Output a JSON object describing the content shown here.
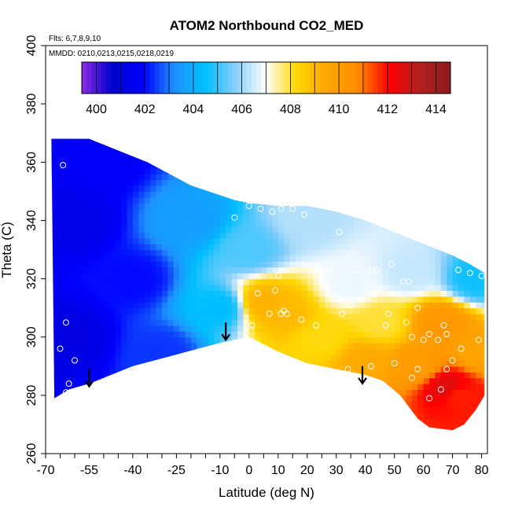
{
  "chart_data": {
    "type": "heatmap",
    "title": "ATOM2 Northbound CO2_MED",
    "annotations": [
      "Flts: 6,7,8,9,10",
      "MMDD: 0210,0213,0215,0218,0219"
    ],
    "xlabel": "Latitude (deg N)",
    "ylabel": "Theta (C)",
    "xlim": [
      -70,
      82
    ],
    "ylim": [
      260,
      400
    ],
    "x_ticks": [
      "-70",
      "-55",
      "-40",
      "-25",
      "-10",
      "0",
      "10",
      "20",
      "30",
      "40",
      "50",
      "60",
      "70",
      "80"
    ],
    "y_ticks": [
      "260",
      "280",
      "300",
      "320",
      "340",
      "360",
      "380",
      "400"
    ],
    "colorbar": {
      "ticks": [
        "400",
        "402",
        "404",
        "406",
        "408",
        "410",
        "412",
        "414"
      ],
      "range": [
        399.4,
        414.6
      ],
      "colors": [
        "#8b2be2",
        "#0000cd",
        "#0000ff",
        "#1e90ff",
        "#00bfff",
        "#87cefa",
        "#ffffff",
        "#ffd700",
        "#ffa500",
        "#ff8c00",
        "#ff0000",
        "#b22222",
        "#8b1a1a"
      ]
    },
    "field": {
      "description": "CO2 median (ppm) interpolated on latitude/theta grid",
      "ridge_top": [
        [
          -68,
          368
        ],
        [
          -55,
          368
        ],
        [
          -45,
          364
        ],
        [
          -35,
          360
        ],
        [
          -20,
          352
        ],
        [
          -5,
          347
        ],
        [
          0,
          346
        ],
        [
          10,
          345
        ],
        [
          20,
          345
        ],
        [
          30,
          343
        ],
        [
          40,
          340
        ],
        [
          50,
          336
        ],
        [
          60,
          332
        ],
        [
          70,
          328
        ],
        [
          76,
          325
        ],
        [
          81,
          322
        ]
      ],
      "bottom_edge": [
        [
          -67,
          279
        ],
        [
          -62,
          282
        ],
        [
          -55,
          284
        ],
        [
          -40,
          290
        ],
        [
          -25,
          294
        ],
        [
          -10,
          298
        ],
        [
          0,
          300
        ],
        [
          10,
          295
        ],
        [
          20,
          291
        ],
        [
          30,
          289
        ],
        [
          40,
          287
        ],
        [
          46,
          285
        ],
        [
          52,
          280
        ],
        [
          58,
          272
        ],
        [
          62,
          269
        ],
        [
          70,
          268
        ],
        [
          74,
          270
        ],
        [
          78,
          275
        ],
        [
          81,
          280
        ]
      ],
      "anchors": [
        {
          "lat": -62,
          "theta": 300,
          "co2": 401.2
        },
        {
          "lat": -60,
          "theta": 340,
          "co2": 401.4
        },
        {
          "lat": -50,
          "theta": 360,
          "co2": 401.8
        },
        {
          "lat": -40,
          "theta": 320,
          "co2": 402.0
        },
        {
          "lat": -30,
          "theta": 295,
          "co2": 402.4
        },
        {
          "lat": -20,
          "theta": 340,
          "co2": 403.6
        },
        {
          "lat": -10,
          "theta": 310,
          "co2": 404.4
        },
        {
          "lat": 0,
          "theta": 330,
          "co2": 405.2
        },
        {
          "lat": 5,
          "theta": 312,
          "co2": 409.2
        },
        {
          "lat": 12,
          "theta": 308,
          "co2": 409.0
        },
        {
          "lat": 20,
          "theta": 340,
          "co2": 406.2
        },
        {
          "lat": 25,
          "theta": 300,
          "co2": 408.2
        },
        {
          "lat": 35,
          "theta": 318,
          "co2": 406.8
        },
        {
          "lat": 40,
          "theta": 292,
          "co2": 409.4
        },
        {
          "lat": 45,
          "theta": 305,
          "co2": 408.0
        },
        {
          "lat": 55,
          "theta": 322,
          "co2": 406.4
        },
        {
          "lat": 58,
          "theta": 290,
          "co2": 410.0
        },
        {
          "lat": 66,
          "theta": 305,
          "co2": 410.2
        },
        {
          "lat": 68,
          "theta": 283,
          "co2": 412.6
        },
        {
          "lat": 72,
          "theta": 280,
          "co2": 411.8
        },
        {
          "lat": 78,
          "theta": 320,
          "co2": 404.6
        },
        {
          "lat": 80,
          "theta": 295,
          "co2": 409.6
        }
      ],
      "observations": [
        [
          -64,
          359
        ],
        [
          -63,
          305
        ],
        [
          -65,
          296
        ],
        [
          -60,
          292
        ],
        [
          -62,
          284
        ],
        [
          -63,
          281
        ],
        [
          -65,
          278
        ],
        [
          0,
          345
        ],
        [
          -5,
          341
        ],
        [
          4,
          344
        ],
        [
          8,
          343
        ],
        [
          11,
          344
        ],
        [
          15,
          344
        ],
        [
          19,
          342
        ],
        [
          26,
          346
        ],
        [
          31,
          336
        ],
        [
          -1,
          299
        ],
        [
          1,
          304
        ],
        [
          3,
          315
        ],
        [
          7,
          308
        ],
        [
          9,
          316
        ],
        [
          11,
          308
        ],
        [
          12,
          309
        ],
        [
          13,
          308
        ],
        [
          10,
          321
        ],
        [
          18,
          306
        ],
        [
          23,
          304
        ],
        [
          27,
          317
        ],
        [
          32,
          308
        ],
        [
          35,
          311
        ],
        [
          28,
          323
        ],
        [
          37,
          323
        ],
        [
          40,
          318
        ],
        [
          42,
          323
        ],
        [
          44,
          323
        ],
        [
          47,
          304
        ],
        [
          49,
          325
        ],
        [
          48,
          308
        ],
        [
          53,
          319
        ],
        [
          55,
          319
        ],
        [
          54,
          305
        ],
        [
          56,
          300
        ],
        [
          58,
          310
        ],
        [
          60,
          299
        ],
        [
          62,
          301
        ],
        [
          65,
          299
        ],
        [
          67,
          304
        ],
        [
          68,
          301
        ],
        [
          70,
          292
        ],
        [
          68,
          289
        ],
        [
          66,
          282
        ],
        [
          72,
          323
        ],
        [
          76,
          322
        ],
        [
          80,
          321
        ],
        [
          34,
          289
        ],
        [
          42,
          290
        ],
        [
          50,
          291
        ],
        [
          56,
          286
        ],
        [
          58,
          289
        ],
        [
          62,
          279
        ],
        [
          73,
          296
        ],
        [
          79,
          299
        ]
      ],
      "arrows": [
        [
          -55,
          289
        ],
        [
          -8,
          305
        ],
        [
          39,
          290
        ]
      ]
    }
  }
}
